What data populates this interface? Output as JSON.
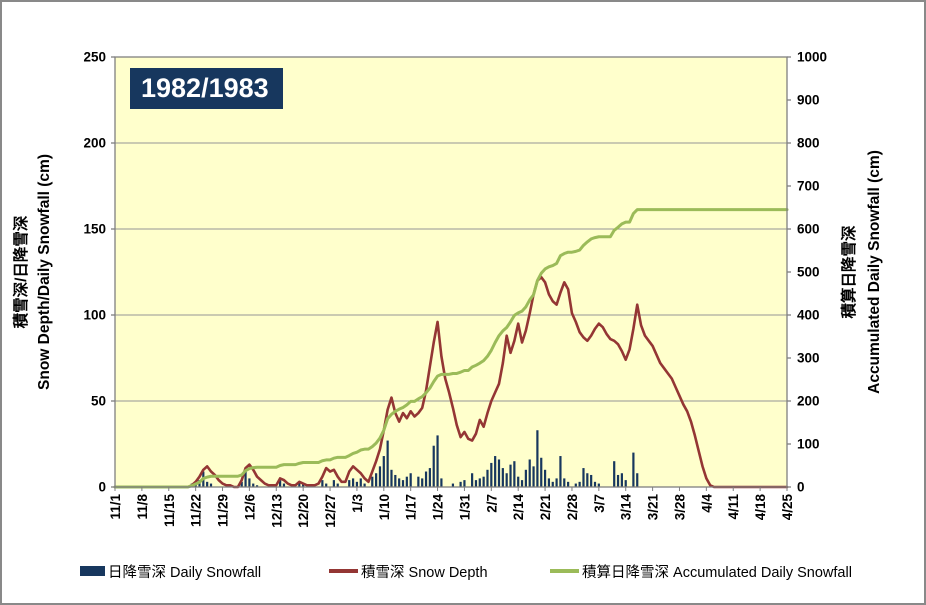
{
  "chart_data": {
    "type": "combo-bar-line",
    "title": "1982/1983",
    "plot_bg_color": "#FFFFCC",
    "gridline_color": "#969696",
    "border_color": "#7F7F7F",
    "grid": true,
    "x_tick_labels": [
      "11/1",
      "11/8",
      "11/15",
      "11/22",
      "11/29",
      "12/6",
      "12/13",
      "12/20",
      "12/27",
      "1/3",
      "1/10",
      "1/17",
      "1/24",
      "1/31",
      "2/7",
      "2/14",
      "2/21",
      "2/28",
      "3/7",
      "3/14",
      "3/21",
      "3/28",
      "4/4",
      "4/11",
      "4/18",
      "4/25"
    ],
    "days_per_tick": 7,
    "left_axis": {
      "title_ja": "積雪深/日降雪深",
      "title_en": "Snow Depth/Daily Snowfall (cm)",
      "min": 0,
      "max": 250,
      "step": 50
    },
    "right_axis": {
      "title_ja": "積算日降雪深",
      "title_en": "Accumulated Daily Snowfall (cm)",
      "min": 0,
      "max": 1000,
      "step": 100
    },
    "series": [
      {
        "name": "日降雪深 Daily Snowfall",
        "type": "bar",
        "axis": "left",
        "color": "#17375E",
        "values": [
          0,
          0,
          0,
          0,
          0,
          0,
          0,
          0,
          0,
          0,
          0,
          0,
          0,
          0,
          0,
          0,
          0,
          0,
          0,
          0,
          2,
          3,
          4,
          9,
          3,
          2,
          0,
          0,
          0,
          0,
          0,
          0,
          0,
          3,
          10,
          5,
          2,
          1,
          0,
          0,
          0,
          0,
          0,
          4,
          2,
          0,
          0,
          0,
          3,
          2,
          0,
          0,
          0,
          0,
          4,
          2,
          0,
          4,
          2,
          0,
          0,
          4,
          5,
          3,
          5,
          2,
          0,
          6,
          8,
          12,
          18,
          27,
          10,
          7,
          5,
          4,
          6,
          8,
          0,
          6,
          5,
          9,
          11,
          24,
          30,
          5,
          0,
          0,
          2,
          0,
          3,
          4,
          0,
          8,
          4,
          5,
          6,
          10,
          14,
          18,
          16,
          11,
          8,
          13,
          15,
          6,
          4,
          10,
          16,
          12,
          33,
          17,
          10,
          5,
          3,
          5,
          18,
          5,
          3,
          0,
          2,
          3,
          11,
          8,
          7,
          3,
          2,
          0,
          0,
          0,
          15,
          7,
          8,
          4,
          0,
          20,
          8,
          0,
          0,
          0,
          0,
          0,
          0,
          0,
          0,
          0,
          0,
          0,
          0,
          0,
          0,
          0,
          0,
          0,
          0,
          0,
          0,
          0,
          0,
          0,
          0,
          0,
          0,
          0,
          0,
          0,
          0,
          0,
          0,
          0,
          0,
          0,
          0,
          0,
          0,
          0
        ]
      },
      {
        "name": "積雪深 Snow Depth",
        "type": "line",
        "axis": "left",
        "color": "#943634",
        "values": [
          0,
          0,
          0,
          0,
          0,
          0,
          0,
          0,
          0,
          0,
          0,
          0,
          0,
          0,
          0,
          0,
          0,
          0,
          0,
          0,
          1,
          3,
          6,
          10,
          12,
          9,
          7,
          4,
          2,
          1,
          1,
          0,
          0,
          4,
          11,
          13,
          10,
          6,
          4,
          2,
          1,
          1,
          1,
          5,
          4,
          2,
          1,
          1,
          3,
          2,
          1,
          1,
          1,
          2,
          6,
          11,
          9,
          10,
          6,
          3,
          3,
          9,
          12,
          10,
          8,
          5,
          3,
          9,
          15,
          22,
          33,
          45,
          52,
          43,
          38,
          43,
          40,
          44,
          41,
          43,
          46,
          56,
          70,
          84,
          96,
          76,
          63,
          55,
          46,
          36,
          29,
          32,
          28,
          27,
          31,
          39,
          35,
          43,
          50,
          55,
          60,
          72,
          88,
          78,
          85,
          95,
          84,
          91,
          101,
          112,
          120,
          122,
          119,
          112,
          108,
          106,
          113,
          119,
          115,
          101,
          96,
          90,
          87,
          85,
          88,
          92,
          95,
          93,
          89,
          86,
          85,
          83,
          79,
          74,
          80,
          92,
          106,
          94,
          88,
          85,
          82,
          77,
          72,
          69,
          66,
          63,
          58,
          53,
          48,
          44,
          38,
          30,
          21,
          12,
          5,
          1,
          0,
          0,
          0,
          0,
          0,
          0,
          0,
          0,
          0,
          0,
          0,
          0,
          0,
          0,
          0,
          0,
          0,
          0,
          0,
          0
        ]
      },
      {
        "name": "積算日降雪深 Accumulated Daily Snowfall",
        "type": "line",
        "axis": "right",
        "color": "#9BBB59",
        "values": [
          0,
          0,
          0,
          0,
          0,
          0,
          0,
          0,
          0,
          0,
          0,
          0,
          0,
          0,
          0,
          0,
          0,
          0,
          0,
          0,
          3,
          7,
          11,
          20,
          23,
          25,
          25,
          25,
          25,
          25,
          25,
          25,
          25,
          28,
          38,
          43,
          45,
          46,
          46,
          46,
          46,
          46,
          46,
          50,
          52,
          52,
          52,
          52,
          55,
          57,
          57,
          57,
          57,
          57,
          61,
          63,
          63,
          67,
          69,
          69,
          69,
          73,
          78,
          81,
          86,
          88,
          88,
          94,
          102,
          114,
          132,
          159,
          169,
          176,
          181,
          185,
          191,
          199,
          199,
          205,
          210,
          219,
          230,
          245,
          258,
          262,
          262,
          262,
          264,
          264,
          267,
          271,
          271,
          279,
          283,
          288,
          294,
          304,
          318,
          336,
          352,
          363,
          371,
          384,
          399,
          405,
          409,
          419,
          435,
          447,
          480,
          497,
          507,
          512,
          515,
          520,
          538,
          543,
          546,
          546,
          548,
          551,
          562,
          570,
          577,
          580,
          582,
          582,
          582,
          582,
          597,
          604,
          612,
          616,
          616,
          636,
          645,
          645,
          645,
          645,
          645,
          645,
          645,
          645,
          645,
          645,
          645,
          645,
          645,
          645,
          645,
          645,
          645,
          645,
          645,
          645,
          645,
          645,
          645,
          645,
          645,
          645,
          645,
          645,
          645,
          645,
          645,
          645,
          645,
          645,
          645,
          645,
          645,
          645,
          645,
          645
        ]
      }
    ]
  },
  "title_box": {
    "label": "1982/1983",
    "bg_color": "#17375E"
  },
  "legend": {
    "items": [
      {
        "label": "日降雪深 Daily Snowfall",
        "color": "#17375E",
        "marker": "bar"
      },
      {
        "label": "積雪深 Snow Depth",
        "color": "#943634",
        "marker": "line"
      },
      {
        "label": "積算日降雪深 Accumulated Daily Snowfall",
        "color": "#9BBB59",
        "marker": "line"
      }
    ]
  }
}
